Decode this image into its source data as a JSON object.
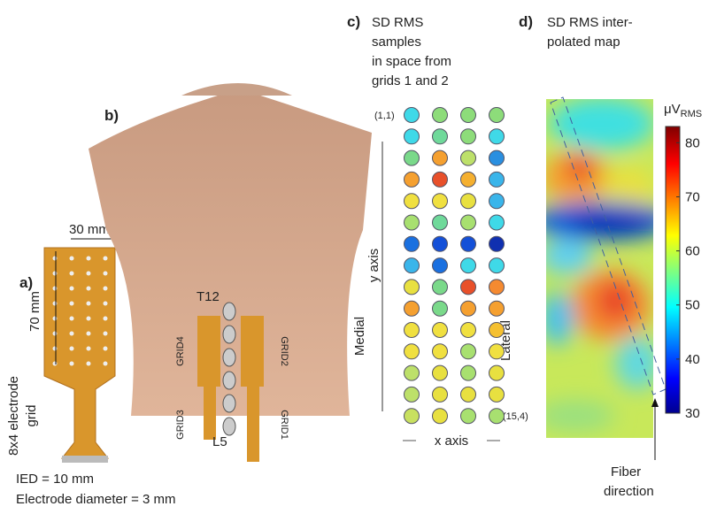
{
  "panel_a": {
    "label": "a)",
    "width": "30 mm",
    "height": "70 mm",
    "caption": [
      "8x4 electrode",
      "grid"
    ],
    "ied": "IED = 10 mm",
    "diameter": "Electrode diameter = 3 mm"
  },
  "panel_b": {
    "label": "b)",
    "top_vertebra": "T12",
    "bottom_vertebra": "L5",
    "grids": [
      "GRID4",
      "GRID3",
      "GRID2",
      "GRID1"
    ]
  },
  "panel_c": {
    "label": "c)",
    "title": [
      "SD RMS",
      "samples",
      "in space from",
      "grids 1 and 2"
    ],
    "first_index": "(1,1)",
    "last_index": "(15,4)",
    "y_axis": "y axis",
    "x_axis": "x axis",
    "left_side": "Medial",
    "right_side": "Lateral",
    "colors": [
      [
        "#3fd9e8",
        "#8ddc7a",
        "#8ddc7a",
        "#8ddc7a"
      ],
      [
        "#3fd9e8",
        "#6fd99a",
        "#8ddc7a",
        "#3fd9e8"
      ],
      [
        "#7ad98a",
        "#f5a030",
        "#bde06a",
        "#2a8fe0"
      ],
      [
        "#f5a030",
        "#e8502a",
        "#f5b030",
        "#3ab5ea"
      ],
      [
        "#f0e040",
        "#f0e040",
        "#e8e040",
        "#3ab5ea"
      ],
      [
        "#a8e070",
        "#6fd99a",
        "#a8e070",
        "#3fd9e8"
      ],
      [
        "#1a70e0",
        "#1450d8",
        "#1450d8",
        "#1030b0"
      ],
      [
        "#3ab5ea",
        "#1a70e0",
        "#3fd9e8",
        "#3fd9e8"
      ],
      [
        "#e8e040",
        "#7ad98a",
        "#e8502a",
        "#f58a30"
      ],
      [
        "#f5a030",
        "#7ad98a",
        "#f5a030",
        "#f5a030"
      ],
      [
        "#f0e040",
        "#f0e040",
        "#f0e040",
        "#f5c030"
      ],
      [
        "#f0e040",
        "#f0e040",
        "#a8e070",
        "#f0e040"
      ],
      [
        "#bde06a",
        "#e8e040",
        "#a8e070",
        "#e8e040"
      ],
      [
        "#bde06a",
        "#e8e040",
        "#e8e040",
        "#e8e040"
      ],
      [
        "#c8e060",
        "#e8e040",
        "#a8e070",
        "#a8e070"
      ]
    ]
  },
  "panel_d": {
    "label": "d)",
    "title": [
      "SD RMS inter-",
      "polated map"
    ],
    "unit": "μV",
    "unit_sub": "RMS",
    "colorbar_range": [
      30,
      83
    ],
    "colorbar_ticks": [
      30,
      40,
      50,
      60,
      70,
      80
    ],
    "fiber": [
      "Fiber",
      "direction"
    ]
  }
}
